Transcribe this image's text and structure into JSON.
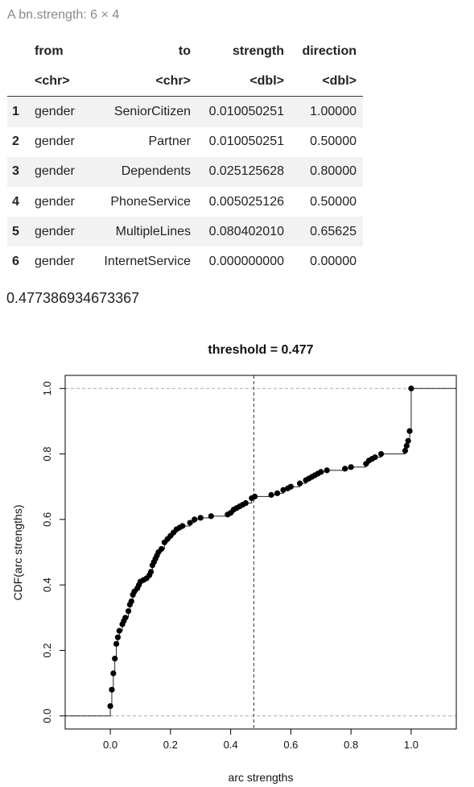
{
  "caption": "A bn.strength: 6 × 4",
  "table": {
    "columns": [
      "",
      "from",
      "to",
      "strength",
      "direction"
    ],
    "types": [
      "",
      "<chr>",
      "<chr>",
      "<dbl>",
      "<dbl>"
    ],
    "rows": [
      [
        "1",
        "gender",
        "SeniorCitizen",
        "0.010050251",
        "1.00000"
      ],
      [
        "2",
        "gender",
        "Partner",
        "0.010050251",
        "0.50000"
      ],
      [
        "3",
        "gender",
        "Dependents",
        "0.025125628",
        "0.80000"
      ],
      [
        "4",
        "gender",
        "PhoneService",
        "0.005025126",
        "0.50000"
      ],
      [
        "5",
        "gender",
        "MultipleLines",
        "0.080402010",
        "0.65625"
      ],
      [
        "6",
        "gender",
        "InternetService",
        "0.000000000",
        "0.00000"
      ]
    ]
  },
  "threshold_output": "0.477386934673367",
  "chart_data": {
    "type": "scatter",
    "title": "threshold =  0.477",
    "xlabel": "arc strengths",
    "ylabel": "CDF(arc strengths)",
    "xlim": [
      -0.15,
      1.15
    ],
    "ylim": [
      -0.04,
      1.04
    ],
    "x_ticks": [
      0.0,
      0.2,
      0.4,
      0.6,
      0.8,
      1.0
    ],
    "x_tick_labels": [
      "0.0",
      "0.2",
      "0.4",
      "0.6",
      "0.8",
      "1.0"
    ],
    "y_ticks": [
      0.0,
      0.2,
      0.4,
      0.6,
      0.8,
      1.0
    ],
    "y_tick_labels": [
      "0.0",
      "0.2",
      "0.4",
      "0.6",
      "0.8",
      "1.0"
    ],
    "threshold": 0.477,
    "reference_lines_y": [
      0.0,
      1.0
    ],
    "grid": false,
    "x": [
      0.0,
      0.005,
      0.01,
      0.015,
      0.02,
      0.025,
      0.03,
      0.04,
      0.045,
      0.05,
      0.06,
      0.065,
      0.07,
      0.075,
      0.08,
      0.09,
      0.095,
      0.1,
      0.11,
      0.12,
      0.13,
      0.135,
      0.14,
      0.145,
      0.15,
      0.155,
      0.16,
      0.17,
      0.18,
      0.19,
      0.2,
      0.21,
      0.22,
      0.23,
      0.24,
      0.265,
      0.28,
      0.3,
      0.335,
      0.39,
      0.4,
      0.41,
      0.42,
      0.43,
      0.44,
      0.45,
      0.47,
      0.48,
      0.535,
      0.555,
      0.575,
      0.59,
      0.6,
      0.63,
      0.65,
      0.66,
      0.67,
      0.68,
      0.69,
      0.7,
      0.72,
      0.78,
      0.8,
      0.85,
      0.86,
      0.87,
      0.88,
      0.9,
      0.98,
      0.985,
      0.99,
      0.995,
      1.0
    ],
    "y": [
      0.03,
      0.08,
      0.13,
      0.175,
      0.22,
      0.24,
      0.26,
      0.28,
      0.29,
      0.3,
      0.32,
      0.34,
      0.35,
      0.37,
      0.38,
      0.39,
      0.4,
      0.41,
      0.415,
      0.42,
      0.43,
      0.44,
      0.46,
      0.47,
      0.48,
      0.49,
      0.5,
      0.51,
      0.53,
      0.54,
      0.55,
      0.56,
      0.57,
      0.575,
      0.58,
      0.59,
      0.6,
      0.605,
      0.61,
      0.615,
      0.62,
      0.63,
      0.635,
      0.64,
      0.645,
      0.65,
      0.665,
      0.67,
      0.675,
      0.68,
      0.69,
      0.695,
      0.7,
      0.71,
      0.72,
      0.725,
      0.73,
      0.735,
      0.74,
      0.745,
      0.75,
      0.755,
      0.76,
      0.77,
      0.78,
      0.785,
      0.79,
      0.8,
      0.81,
      0.825,
      0.84,
      0.87,
      1.0
    ]
  }
}
